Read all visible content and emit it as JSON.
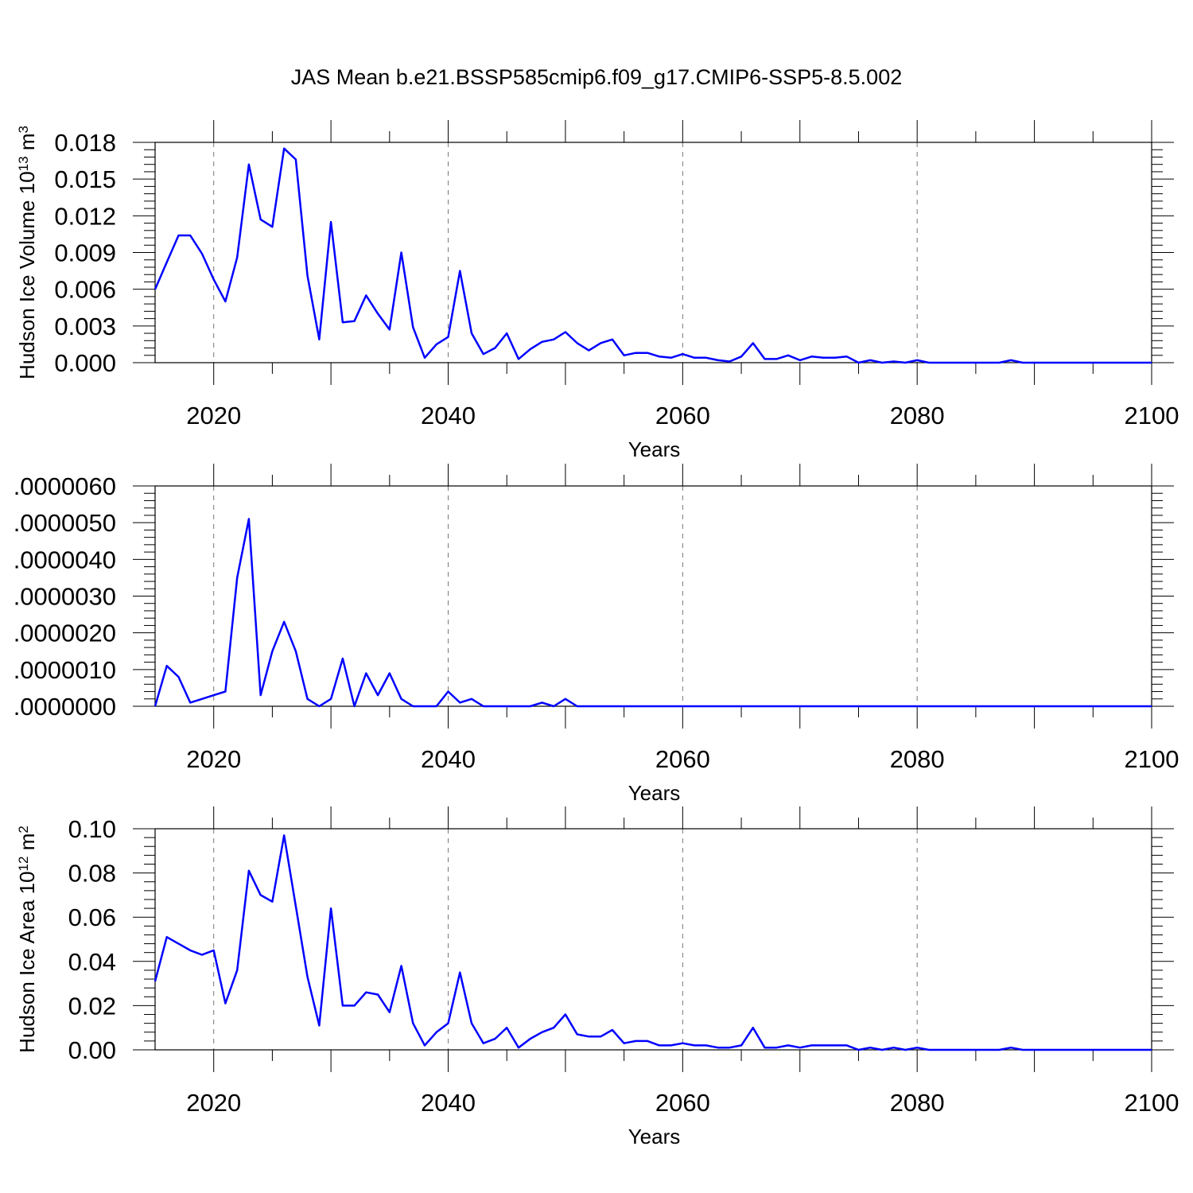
{
  "title": "JAS Mean b.e21.BSSP585cmip6.f09_g17.CMIP6-SSP5-8.5.002",
  "chart_data": [
    {
      "type": "line",
      "ylabel_main": "Hudson Ice Volume 10",
      "ylabel_exp": "13",
      "ylabel_unit": " m",
      "ylabel_unit_exp": "3",
      "xlabel": "Years",
      "xlim": [
        2015,
        2100
      ],
      "ylim": [
        0,
        0.018
      ],
      "xticks": [
        2020,
        2040,
        2060,
        2080,
        2100
      ],
      "xtick_labels": [
        "2020",
        "2040",
        "2060",
        "2080",
        "2100"
      ],
      "yticks": [
        0,
        0.003,
        0.006,
        0.009,
        0.012,
        0.015,
        0.018
      ],
      "ytick_labels": [
        "0.000",
        "0.003",
        "0.006",
        "0.009",
        "0.012",
        "0.015",
        "0.018"
      ],
      "grid": "dashed vertical at major x ticks",
      "color": "#0000ff",
      "x": [
        2015,
        2016,
        2017,
        2018,
        2019,
        2020,
        2021,
        2022,
        2023,
        2024,
        2025,
        2026,
        2027,
        2028,
        2029,
        2030,
        2031,
        2032,
        2033,
        2034,
        2035,
        2036,
        2037,
        2038,
        2039,
        2040,
        2041,
        2042,
        2043,
        2044,
        2045,
        2046,
        2047,
        2048,
        2049,
        2050,
        2051,
        2052,
        2053,
        2054,
        2055,
        2056,
        2057,
        2058,
        2059,
        2060,
        2061,
        2062,
        2063,
        2064,
        2065,
        2066,
        2067,
        2068,
        2069,
        2070,
        2071,
        2072,
        2073,
        2074,
        2075,
        2076,
        2077,
        2078,
        2079,
        2080,
        2081,
        2082,
        2083,
        2084,
        2085,
        2086,
        2087,
        2088,
        2089,
        2090,
        2091,
        2092,
        2093,
        2094,
        2095,
        2096,
        2097,
        2098,
        2099,
        2100
      ],
      "y": [
        0.006,
        0.0082,
        0.0104,
        0.0104,
        0.0089,
        0.0068,
        0.005,
        0.0086,
        0.0162,
        0.0117,
        0.0111,
        0.0175,
        0.0166,
        0.0071,
        0.0019,
        0.0115,
        0.0033,
        0.0034,
        0.0055,
        0.004,
        0.0027,
        0.009,
        0.0029,
        0.0004,
        0.0015,
        0.0021,
        0.0075,
        0.0024,
        0.0007,
        0.0012,
        0.0024,
        0.0003,
        0.0011,
        0.0017,
        0.0019,
        0.0025,
        0.0016,
        0.001,
        0.0016,
        0.0019,
        0.0006,
        0.0008,
        0.0008,
        0.0005,
        0.0004,
        0.0007,
        0.0004,
        0.0004,
        0.0002,
        0.0001,
        0.0005,
        0.0016,
        0.0003,
        0.0003,
        0.0006,
        0.0002,
        0.0005,
        0.0004,
        0.0004,
        0.0005,
        0.0,
        0.0002,
        0.0,
        0.0001,
        0.0,
        0.0002,
        0.0,
        0.0,
        0.0,
        0.0,
        0.0,
        0.0,
        0.0,
        0.0002,
        0.0,
        0.0,
        0.0,
        0.0,
        0.0,
        0.0,
        0.0,
        0.0,
        0.0,
        0.0,
        0.0,
        0.0
      ]
    },
    {
      "type": "line",
      "ylabel_main": "",
      "ylabel_exp": "",
      "ylabel_unit": "",
      "ylabel_unit_exp": "",
      "xlabel": "Years",
      "xlim": [
        2015,
        2100
      ],
      "ylim": [
        0,
        6e-06
      ],
      "xticks": [
        2020,
        2040,
        2060,
        2080,
        2100
      ],
      "xtick_labels": [
        "2020",
        "2040",
        "2060",
        "2080",
        "2100"
      ],
      "yticks": [
        0,
        1e-06,
        2e-06,
        3e-06,
        4e-06,
        5e-06,
        6e-06
      ],
      "ytick_labels": [
        ".0000000",
        ".0000010",
        ".0000020",
        ".0000030",
        ".0000040",
        ".0000050",
        ".0000060"
      ],
      "grid": "dashed vertical at major x ticks",
      "color": "#0000ff",
      "x": [
        2015,
        2016,
        2017,
        2018,
        2019,
        2020,
        2021,
        2022,
        2023,
        2024,
        2025,
        2026,
        2027,
        2028,
        2029,
        2030,
        2031,
        2032,
        2033,
        2034,
        2035,
        2036,
        2037,
        2038,
        2039,
        2040,
        2041,
        2042,
        2043,
        2044,
        2045,
        2046,
        2047,
        2048,
        2049,
        2050,
        2051,
        2052,
        2053,
        2054,
        2055,
        2056,
        2057,
        2058,
        2059,
        2060,
        2061,
        2062,
        2063,
        2064,
        2065,
        2066,
        2067,
        2068,
        2069,
        2070,
        2071,
        2072,
        2073,
        2074,
        2075,
        2076,
        2077,
        2078,
        2079,
        2080,
        2081,
        2082,
        2083,
        2084,
        2085,
        2086,
        2087,
        2088,
        2089,
        2090,
        2091,
        2092,
        2093,
        2094,
        2095,
        2096,
        2097,
        2098,
        2099,
        2100
      ],
      "y": [
        0.0,
        1.1e-06,
        8e-07,
        1e-07,
        2e-07,
        3e-07,
        4e-07,
        3.5e-06,
        5.1e-06,
        3e-07,
        1.5e-06,
        2.3e-06,
        1.5e-06,
        2e-07,
        0.0,
        2e-07,
        1.3e-06,
        0.0,
        9e-07,
        3e-07,
        9e-07,
        2e-07,
        0.0,
        0.0,
        0.0,
        4e-07,
        1e-07,
        2e-07,
        0.0,
        0.0,
        0.0,
        0.0,
        0.0,
        1e-07,
        0.0,
        2e-07,
        0.0,
        0.0,
        0.0,
        0.0,
        0.0,
        0.0,
        0.0,
        0.0,
        0.0,
        0.0,
        0.0,
        0.0,
        0.0,
        0.0,
        0.0,
        0.0,
        0.0,
        0.0,
        0.0,
        0.0,
        0.0,
        0.0,
        0.0,
        0.0,
        0.0,
        0.0,
        0.0,
        0.0,
        0.0,
        0.0,
        0.0,
        0.0,
        0.0,
        0.0,
        0.0,
        0.0,
        0.0,
        0.0,
        0.0,
        0.0,
        0.0,
        0.0,
        0.0,
        0.0,
        0.0,
        0.0,
        0.0,
        0.0,
        0.0,
        0.0
      ]
    },
    {
      "type": "line",
      "ylabel_main": "Hudson Ice Area 10",
      "ylabel_exp": "12",
      "ylabel_unit": " m",
      "ylabel_unit_exp": "2",
      "xlabel": "Years",
      "xlim": [
        2015,
        2100
      ],
      "ylim": [
        0,
        0.1
      ],
      "xticks": [
        2020,
        2040,
        2060,
        2080,
        2100
      ],
      "xtick_labels": [
        "2020",
        "2040",
        "2060",
        "2080",
        "2100"
      ],
      "yticks": [
        0,
        0.02,
        0.04,
        0.06,
        0.08,
        0.1
      ],
      "ytick_labels": [
        "0.00",
        "0.02",
        "0.04",
        "0.06",
        "0.08",
        "0.10"
      ],
      "grid": "dashed vertical at major x ticks",
      "color": "#0000ff",
      "x": [
        2015,
        2016,
        2017,
        2018,
        2019,
        2020,
        2021,
        2022,
        2023,
        2024,
        2025,
        2026,
        2027,
        2028,
        2029,
        2030,
        2031,
        2032,
        2033,
        2034,
        2035,
        2036,
        2037,
        2038,
        2039,
        2040,
        2041,
        2042,
        2043,
        2044,
        2045,
        2046,
        2047,
        2048,
        2049,
        2050,
        2051,
        2052,
        2053,
        2054,
        2055,
        2056,
        2057,
        2058,
        2059,
        2060,
        2061,
        2062,
        2063,
        2064,
        2065,
        2066,
        2067,
        2068,
        2069,
        2070,
        2071,
        2072,
        2073,
        2074,
        2075,
        2076,
        2077,
        2078,
        2079,
        2080,
        2081,
        2082,
        2083,
        2084,
        2085,
        2086,
        2087,
        2088,
        2089,
        2090,
        2091,
        2092,
        2093,
        2094,
        2095,
        2096,
        2097,
        2098,
        2099,
        2100
      ],
      "y": [
        0.031,
        0.051,
        0.048,
        0.045,
        0.043,
        0.045,
        0.021,
        0.036,
        0.081,
        0.07,
        0.067,
        0.097,
        0.065,
        0.033,
        0.011,
        0.064,
        0.02,
        0.02,
        0.026,
        0.025,
        0.017,
        0.038,
        0.012,
        0.002,
        0.008,
        0.012,
        0.035,
        0.012,
        0.003,
        0.005,
        0.01,
        0.001,
        0.005,
        0.008,
        0.01,
        0.016,
        0.007,
        0.006,
        0.006,
        0.009,
        0.003,
        0.004,
        0.004,
        0.002,
        0.002,
        0.003,
        0.002,
        0.002,
        0.001,
        0.001,
        0.002,
        0.01,
        0.001,
        0.001,
        0.002,
        0.001,
        0.002,
        0.002,
        0.002,
        0.002,
        0.0,
        0.001,
        0.0,
        0.001,
        0.0,
        0.001,
        0.0,
        0.0,
        0.0,
        0.0,
        0.0,
        0.0,
        0.0,
        0.001,
        0.0,
        0.0,
        0.0,
        0.0,
        0.0,
        0.0,
        0.0,
        0.0,
        0.0,
        0.0,
        0.0,
        0.0
      ]
    }
  ]
}
